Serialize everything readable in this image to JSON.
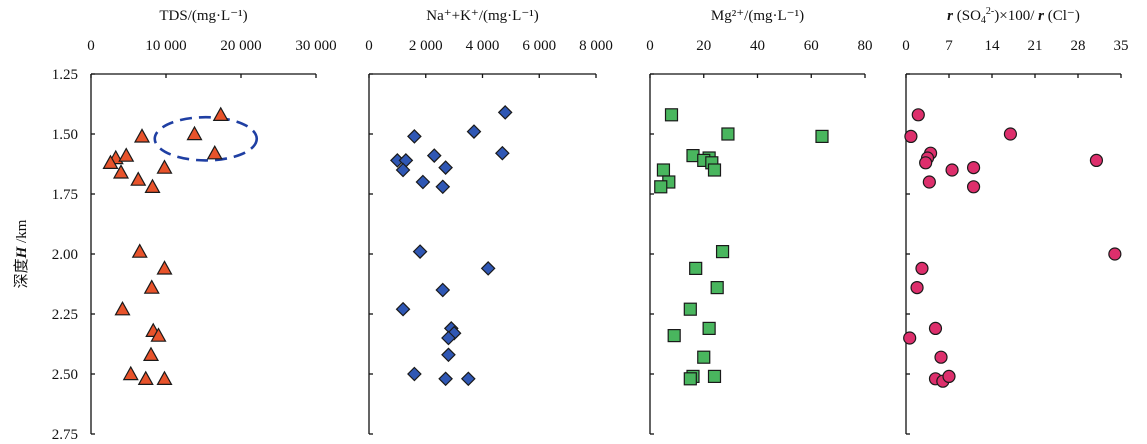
{
  "chart_data": {
    "type": "scatter",
    "y_axis": {
      "label_prefix": "深度",
      "label_var": "H",
      "label_unit": " /km",
      "lim": [
        1.25,
        2.75
      ],
      "ticks": [
        "1.25",
        "1.50",
        "1.75",
        "2.00",
        "2.25",
        "2.50",
        "2.75"
      ],
      "tick_values": [
        1.25,
        1.5,
        1.75,
        2.0,
        2.25,
        2.5,
        2.75
      ],
      "inverted": true
    },
    "panels": [
      {
        "title": "TDS/(mg·L⁻¹)",
        "xlim": [
          0,
          30000
        ],
        "xticks": [
          "0",
          "10 000",
          "20 000",
          "30 000"
        ],
        "xtick_values": [
          0,
          10000,
          20000,
          30000
        ],
        "marker": "triangle",
        "color": "#e8532b",
        "points": [
          {
            "x": 17300,
            "y": 1.42
          },
          {
            "x": 13800,
            "y": 1.5
          },
          {
            "x": 6800,
            "y": 1.51
          },
          {
            "x": 16500,
            "y": 1.58
          },
          {
            "x": 3300,
            "y": 1.6
          },
          {
            "x": 4700,
            "y": 1.59
          },
          {
            "x": 2600,
            "y": 1.62
          },
          {
            "x": 9800,
            "y": 1.64
          },
          {
            "x": 4000,
            "y": 1.66
          },
          {
            "x": 6300,
            "y": 1.69
          },
          {
            "x": 8200,
            "y": 1.72
          },
          {
            "x": 6500,
            "y": 1.99
          },
          {
            "x": 9800,
            "y": 2.06
          },
          {
            "x": 8100,
            "y": 2.14
          },
          {
            "x": 4200,
            "y": 2.23
          },
          {
            "x": 8300,
            "y": 2.32
          },
          {
            "x": 9000,
            "y": 2.34
          },
          {
            "x": 8000,
            "y": 2.42
          },
          {
            "x": 5300,
            "y": 2.5
          },
          {
            "x": 7300,
            "y": 2.52
          },
          {
            "x": 9800,
            "y": 2.52
          }
        ],
        "highlight_ellipse": {
          "cx": 15300,
          "cy": 1.52,
          "rx": 6800,
          "ry": 0.09,
          "color": "#1f3fa3"
        }
      },
      {
        "title": "Na⁺+K⁺/(mg·L⁻¹)",
        "xlim": [
          0,
          8000
        ],
        "xticks": [
          "0",
          "2 000",
          "4 000",
          "6 000",
          "8 000"
        ],
        "xtick_values": [
          0,
          2000,
          4000,
          6000,
          8000
        ],
        "marker": "diamond",
        "color": "#2f57b4",
        "points": [
          {
            "x": 4800,
            "y": 1.41
          },
          {
            "x": 3700,
            "y": 1.49
          },
          {
            "x": 1600,
            "y": 1.51
          },
          {
            "x": 4700,
            "y": 1.58
          },
          {
            "x": 2300,
            "y": 1.59
          },
          {
            "x": 1000,
            "y": 1.61
          },
          {
            "x": 1300,
            "y": 1.61
          },
          {
            "x": 2700,
            "y": 1.64
          },
          {
            "x": 1200,
            "y": 1.65
          },
          {
            "x": 1900,
            "y": 1.7
          },
          {
            "x": 2600,
            "y": 1.72
          },
          {
            "x": 1800,
            "y": 1.99
          },
          {
            "x": 4200,
            "y": 2.06
          },
          {
            "x": 2600,
            "y": 2.15
          },
          {
            "x": 1200,
            "y": 2.23
          },
          {
            "x": 2900,
            "y": 2.31
          },
          {
            "x": 3000,
            "y": 2.33
          },
          {
            "x": 2800,
            "y": 2.35
          },
          {
            "x": 2800,
            "y": 2.42
          },
          {
            "x": 1600,
            "y": 2.5
          },
          {
            "x": 2700,
            "y": 2.52
          },
          {
            "x": 3500,
            "y": 2.52
          }
        ]
      },
      {
        "title": "Mg²⁺/(mg·L⁻¹)",
        "xlim": [
          0,
          80
        ],
        "xticks": [
          "0",
          "20",
          "40",
          "60",
          "80"
        ],
        "xtick_values": [
          0,
          20,
          40,
          60,
          80
        ],
        "marker": "square",
        "color": "#49b65e",
        "points": [
          {
            "x": 8,
            "y": 1.42
          },
          {
            "x": 29,
            "y": 1.5
          },
          {
            "x": 64,
            "y": 1.51
          },
          {
            "x": 16,
            "y": 1.59
          },
          {
            "x": 22,
            "y": 1.6
          },
          {
            "x": 20,
            "y": 1.61
          },
          {
            "x": 23,
            "y": 1.62
          },
          {
            "x": 5,
            "y": 1.65
          },
          {
            "x": 24,
            "y": 1.65
          },
          {
            "x": 7,
            "y": 1.7
          },
          {
            "x": 4,
            "y": 1.72
          },
          {
            "x": 27,
            "y": 1.99
          },
          {
            "x": 17,
            "y": 2.06
          },
          {
            "x": 25,
            "y": 2.14
          },
          {
            "x": 15,
            "y": 2.23
          },
          {
            "x": 22,
            "y": 2.31
          },
          {
            "x": 9,
            "y": 2.34
          },
          {
            "x": 20,
            "y": 2.43
          },
          {
            "x": 16,
            "y": 2.51
          },
          {
            "x": 15,
            "y": 2.52
          },
          {
            "x": 24,
            "y": 2.51
          }
        ]
      },
      {
        "title_prefix": "r",
        "title_mid": " (SO",
        "title_sub": "4",
        "title_sup": "2-",
        "title_mid2": ")×100/ ",
        "title_prefix2": "r",
        "title_end": " (Cl⁻)",
        "xlim": [
          0,
          35
        ],
        "xticks": [
          "0",
          "7",
          "14",
          "21",
          "28",
          "35"
        ],
        "xtick_values": [
          0,
          7,
          14,
          21,
          28,
          35
        ],
        "marker": "circle",
        "color": "#dd2f6c",
        "points": [
          {
            "x": 2,
            "y": 1.42
          },
          {
            "x": 0.8,
            "y": 1.51
          },
          {
            "x": 17,
            "y": 1.5
          },
          {
            "x": 4,
            "y": 1.58
          },
          {
            "x": 3.5,
            "y": 1.6
          },
          {
            "x": 3.2,
            "y": 1.62
          },
          {
            "x": 31,
            "y": 1.61
          },
          {
            "x": 7.5,
            "y": 1.65
          },
          {
            "x": 11,
            "y": 1.64
          },
          {
            "x": 3.8,
            "y": 1.7
          },
          {
            "x": 11,
            "y": 1.72
          },
          {
            "x": 34,
            "y": 2.0
          },
          {
            "x": 2.6,
            "y": 2.06
          },
          {
            "x": 1.8,
            "y": 2.14
          },
          {
            "x": 4.8,
            "y": 2.31
          },
          {
            "x": 0.6,
            "y": 2.35
          },
          {
            "x": 5.7,
            "y": 2.43
          },
          {
            "x": 4.8,
            "y": 2.52
          },
          {
            "x": 6,
            "y": 2.53
          },
          {
            "x": 7.0,
            "y": 2.51
          }
        ]
      }
    ]
  }
}
